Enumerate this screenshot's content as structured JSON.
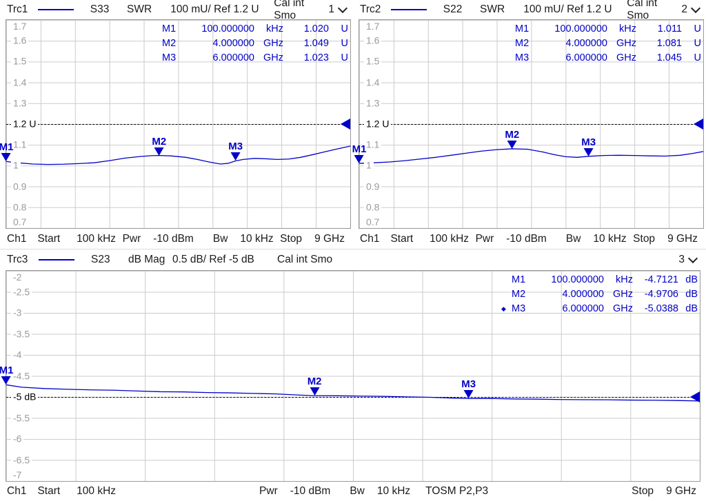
{
  "colors": {
    "trace": "#0000c8",
    "marker": "#0000c8",
    "grid": "#cbcbcb",
    "axis_label": "#9a9a9a",
    "ref_line": "#000000",
    "text": "#1a1a1a"
  },
  "chart_data": [
    {
      "type": "line",
      "header": {
        "name": "Trc1",
        "meas": "S33",
        "format": "SWR",
        "scale": "100 mU/ Ref 1.2 U",
        "cal": "Cal int Smo",
        "channel": "1"
      },
      "x_unit": "GHz",
      "x_max": 9,
      "y_top": 1.7,
      "y_bottom": 0.7,
      "grid": true,
      "y_ticks": [
        {
          "text": "1.7",
          "value": 1.7
        },
        {
          "text": "1.6",
          "value": 1.6
        },
        {
          "text": "1.5",
          "value": 1.5
        },
        {
          "text": "1.4",
          "value": 1.4
        },
        {
          "text": "1.3",
          "value": 1.3
        },
        {
          "text": "1.1",
          "value": 1.1
        },
        {
          "text": "1",
          "value": 1.0
        },
        {
          "text": "0.9",
          "value": 0.9
        },
        {
          "text": "0.8",
          "value": 0.8
        },
        {
          "text": "0.7",
          "value": 0.7
        }
      ],
      "ref": {
        "value": 1.2,
        "label": "1.2 U"
      },
      "markers": [
        {
          "name": "M1",
          "x_ghz": 0,
          "value": 1.02,
          "stimulus": "100.000000",
          "stim_unit": "kHz",
          "response": "1.020",
          "resp_unit": "U",
          "active": false
        },
        {
          "name": "M2",
          "x_ghz": 4,
          "value": 1.049,
          "stimulus": "4.000000",
          "stim_unit": "GHz",
          "response": "1.049",
          "resp_unit": "U",
          "active": false
        },
        {
          "name": "M3",
          "x_ghz": 6,
          "value": 1.023,
          "stimulus": "6.000000",
          "stim_unit": "GHz",
          "response": "1.023",
          "resp_unit": "U",
          "active": false
        }
      ],
      "x": [
        0,
        0.3,
        0.7,
        1.1,
        1.5,
        1.9,
        2.3,
        2.7,
        3.1,
        3.5,
        3.8,
        4.0,
        4.3,
        4.7,
        5.0,
        5.3,
        5.6,
        5.8,
        6.0,
        6.2,
        6.5,
        6.8,
        7.1,
        7.4,
        7.7,
        8.0,
        8.3,
        8.6,
        9.0
      ],
      "y": [
        1.02,
        1.014,
        1.008,
        1.006,
        1.007,
        1.01,
        1.014,
        1.024,
        1.036,
        1.044,
        1.048,
        1.049,
        1.047,
        1.04,
        1.03,
        1.018,
        1.008,
        1.011,
        1.023,
        1.03,
        1.035,
        1.033,
        1.03,
        1.032,
        1.04,
        1.052,
        1.065,
        1.078,
        1.094
      ]
    },
    {
      "type": "line",
      "header": {
        "name": "Trc2",
        "meas": "S22",
        "format": "SWR",
        "scale": "100 mU/ Ref 1.2 U",
        "cal": "Cal int Smo",
        "channel": "2"
      },
      "x_unit": "GHz",
      "x_max": 9,
      "y_top": 1.7,
      "y_bottom": 0.7,
      "grid": true,
      "y_ticks": [
        {
          "text": "1.7",
          "value": 1.7
        },
        {
          "text": "1.6",
          "value": 1.6
        },
        {
          "text": "1.5",
          "value": 1.5
        },
        {
          "text": "1.4",
          "value": 1.4
        },
        {
          "text": "1.3",
          "value": 1.3
        },
        {
          "text": "1.1",
          "value": 1.1
        },
        {
          "text": "1",
          "value": 1.0
        },
        {
          "text": "0.9",
          "value": 0.9
        },
        {
          "text": "0.8",
          "value": 0.8
        },
        {
          "text": "0.7",
          "value": 0.7
        }
      ],
      "ref": {
        "value": 1.2,
        "label": "1.2 U"
      },
      "markers": [
        {
          "name": "M1",
          "x_ghz": 0,
          "value": 1.011,
          "stimulus": "100.000000",
          "stim_unit": "kHz",
          "response": "1.011",
          "resp_unit": "U",
          "active": false
        },
        {
          "name": "M2",
          "x_ghz": 4,
          "value": 1.081,
          "stimulus": "4.000000",
          "stim_unit": "GHz",
          "response": "1.081",
          "resp_unit": "U",
          "active": false
        },
        {
          "name": "M3",
          "x_ghz": 6,
          "value": 1.045,
          "stimulus": "6.000000",
          "stim_unit": "GHz",
          "response": "1.045",
          "resp_unit": "U",
          "active": false
        }
      ],
      "x": [
        0,
        0.4,
        0.8,
        1.2,
        1.6,
        2.0,
        2.4,
        2.8,
        3.2,
        3.6,
        4.0,
        4.4,
        4.8,
        5.1,
        5.4,
        5.7,
        6.0,
        6.4,
        6.8,
        7.2,
        7.6,
        8.0,
        8.4,
        8.7,
        9.0
      ],
      "y": [
        1.011,
        1.014,
        1.018,
        1.024,
        1.032,
        1.04,
        1.05,
        1.06,
        1.07,
        1.077,
        1.081,
        1.079,
        1.066,
        1.053,
        1.043,
        1.04,
        1.045,
        1.049,
        1.05,
        1.049,
        1.047,
        1.046,
        1.05,
        1.058,
        1.068
      ]
    },
    {
      "type": "line",
      "header": {
        "name": "Trc3",
        "meas": "S23",
        "format": "dB Mag",
        "scale": "0.5 dB/ Ref -5 dB",
        "cal": "Cal int Smo",
        "channel": "3"
      },
      "x_unit": "GHz",
      "x_max": 9,
      "y_top": -2,
      "y_bottom": -7,
      "grid": true,
      "y_ticks": [
        {
          "text": "-2",
          "value": -2
        },
        {
          "text": "-2.5",
          "value": -2.5
        },
        {
          "text": "-3",
          "value": -3
        },
        {
          "text": "-3.5",
          "value": -3.5
        },
        {
          "text": "-4",
          "value": -4
        },
        {
          "text": "-4.5",
          "value": -4.5
        },
        {
          "text": "-5.5",
          "value": -5.5
        },
        {
          "text": "-6",
          "value": -6
        },
        {
          "text": "-6.5",
          "value": -6.5
        },
        {
          "text": "-7",
          "value": -7
        }
      ],
      "ref": {
        "value": -5,
        "label": "-5 dB"
      },
      "markers": [
        {
          "name": "M1",
          "x_ghz": 0,
          "value": -4.7121,
          "stimulus": "100.000000",
          "stim_unit": "kHz",
          "response": "-4.7121",
          "resp_unit": "dB",
          "active": false
        },
        {
          "name": "M2",
          "x_ghz": 4,
          "value": -4.9706,
          "stimulus": "4.000000",
          "stim_unit": "GHz",
          "response": "-4.9706",
          "resp_unit": "dB",
          "active": false
        },
        {
          "name": "M3",
          "x_ghz": 6,
          "value": -5.0388,
          "stimulus": "6.000000",
          "stim_unit": "GHz",
          "response": "-5.0388",
          "resp_unit": "dB",
          "active": true
        }
      ],
      "x": [
        0,
        0.2,
        0.5,
        0.8,
        1.1,
        1.4,
        1.7,
        2.0,
        2.3,
        2.6,
        2.9,
        3.2,
        3.5,
        3.8,
        4.0,
        4.3,
        4.6,
        4.9,
        5.2,
        5.5,
        5.8,
        6.0,
        6.3,
        6.6,
        6.9,
        7.2,
        7.5,
        7.8,
        8.1,
        8.4,
        8.7,
        9.0
      ],
      "y": [
        -4.712,
        -4.768,
        -4.8,
        -4.818,
        -4.832,
        -4.84,
        -4.858,
        -4.876,
        -4.88,
        -4.895,
        -4.903,
        -4.916,
        -4.928,
        -4.955,
        -4.971,
        -4.972,
        -4.98,
        -4.986,
        -4.998,
        -5.008,
        -5.028,
        -5.039,
        -5.036,
        -5.048,
        -5.052,
        -5.062,
        -5.065,
        -5.068,
        -5.075,
        -5.078,
        -5.085,
        -5.095
      ]
    }
  ],
  "footer_top": {
    "ch": "Ch1",
    "start_label": "Start",
    "start": "100 kHz",
    "pwr_label": "Pwr",
    "pwr": "-10 dBm",
    "bw_label": "Bw",
    "bw": "10 kHz",
    "stop_label": "Stop",
    "stop": "9 GHz"
  },
  "footer_bottom": {
    "ch": "Ch1",
    "start_label": "Start",
    "start": "100 kHz",
    "pwr_label": "Pwr",
    "pwr": "-10 dBm",
    "bw_label": "Bw",
    "bw": "10 kHz",
    "cal": "TOSM P2,P3",
    "stop_label": "Stop",
    "stop": "9 GHz"
  }
}
